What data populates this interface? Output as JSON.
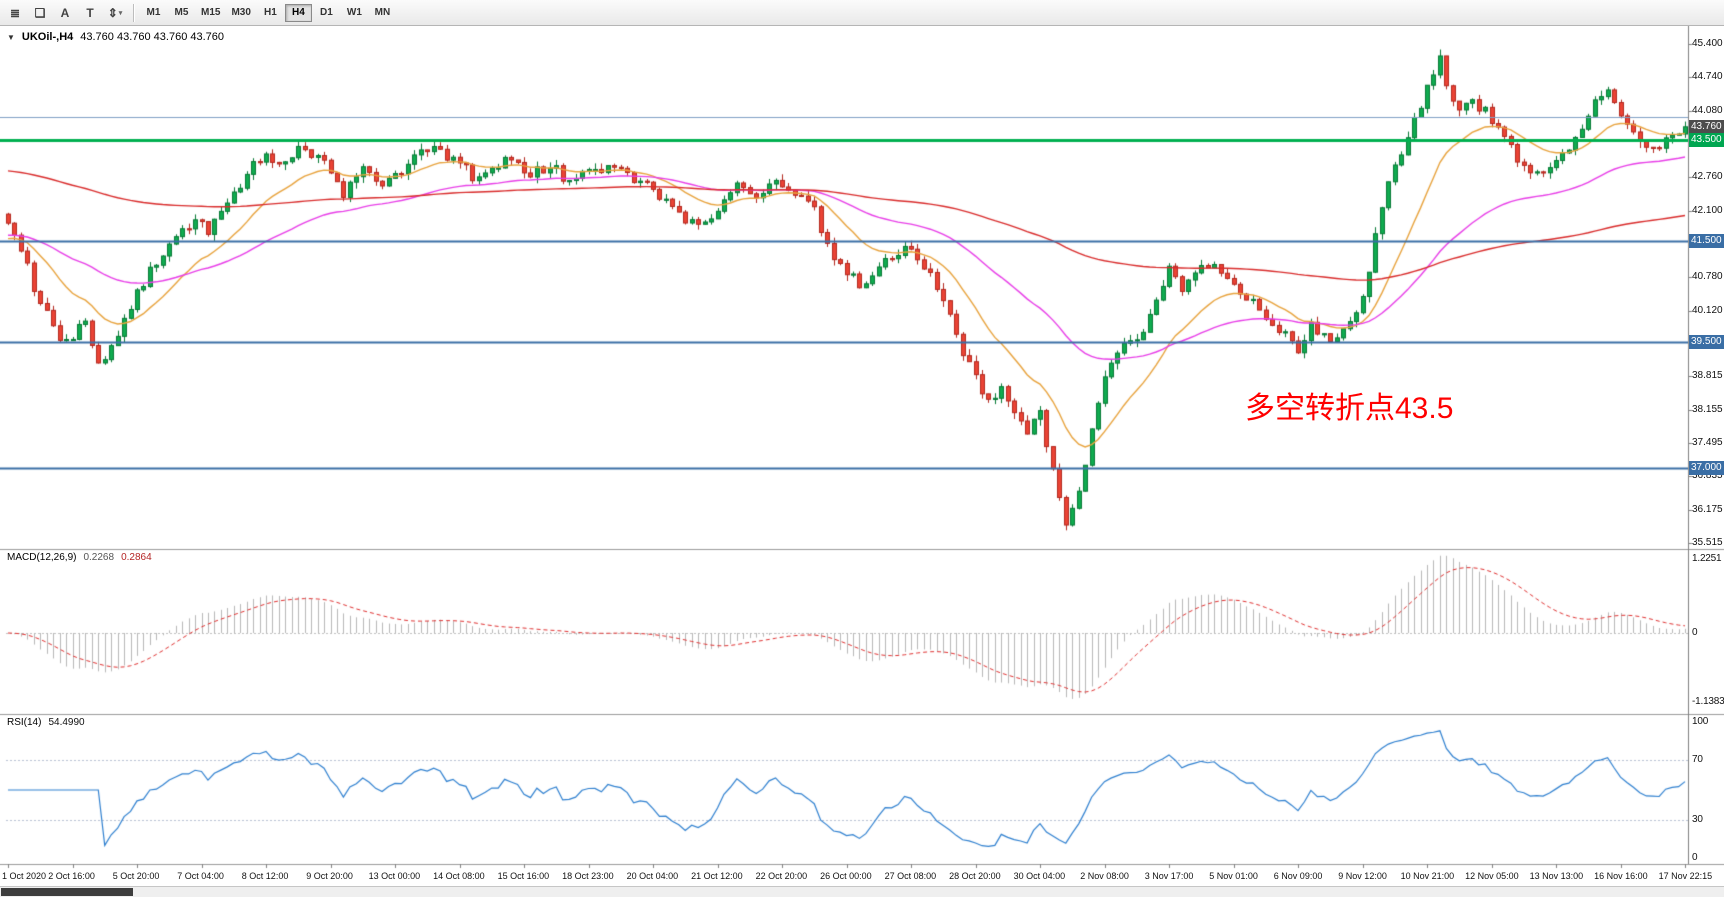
{
  "toolbar": {
    "tools": [
      {
        "glyph": "≣"
      },
      {
        "glyph": "❏"
      },
      {
        "glyph": "A"
      },
      {
        "glyph": "T"
      },
      {
        "glyph": "⇕",
        "caret": "▾"
      }
    ],
    "timeframes": [
      "M1",
      "M5",
      "M15",
      "M30",
      "H1",
      "H4",
      "D1",
      "W1",
      "MN"
    ],
    "active_timeframe": "H4"
  },
  "chart_header": {
    "collapse_glyph": "▼",
    "symbol_timeframe": "UKOil-,H4",
    "ohlc": "43.760 43.760 43.760 43.760"
  },
  "annotation": {
    "text": "多空转折点43.5",
    "color": "#ff0000"
  },
  "chart_data": {
    "type": "candlestick",
    "symbol": "UKOil-",
    "timeframe": "H4",
    "title": "UKOil-,H4",
    "current_price": 43.76,
    "colors": {
      "up": "#10ab4f",
      "up_border": "#067a35",
      "down": "#ea4335",
      "down_border": "#b3271e",
      "background": "#ffffff"
    },
    "price_axis": {
      "range": [
        35.3,
        45.76
      ],
      "ticks": [
        {
          "label": "45.400",
          "price": 45.4
        },
        {
          "label": "44.740",
          "price": 44.74
        },
        {
          "label": "44.080",
          "price": 44.08
        },
        {
          "label": "42.760",
          "price": 42.76
        },
        {
          "label": "42.100",
          "price": 42.1
        },
        {
          "label": "40.780",
          "price": 40.78
        },
        {
          "label": "40.120",
          "price": 40.12
        },
        {
          "label": "38.815",
          "price": 38.815
        },
        {
          "label": "38.155",
          "price": 38.155
        },
        {
          "label": "37.495",
          "price": 37.495
        },
        {
          "label": "36.835",
          "price": 36.835
        },
        {
          "label": "36.175",
          "price": 36.175
        },
        {
          "label": "35.515",
          "price": 35.515
        }
      ]
    },
    "price_tags": [
      {
        "label": "43.760",
        "price": 43.76,
        "bg": "#4d4d4d",
        "kind": "current-price"
      },
      {
        "label": "43.500",
        "price": 43.5,
        "bg": "#00a651",
        "kind": "level"
      },
      {
        "label": "41.500",
        "price": 41.5,
        "bg": "#3a6ea5",
        "kind": "level"
      },
      {
        "label": "39.500",
        "price": 39.5,
        "bg": "#3a6ea5",
        "kind": "level"
      },
      {
        "label": "37.000",
        "price": 37.0,
        "bg": "#3a6ea5",
        "kind": "level"
      }
    ],
    "levels": [
      {
        "price": 43.95,
        "color": "#7f9fc5",
        "width": 1,
        "dash": false
      },
      {
        "price": 43.5,
        "color": "#00b050",
        "width": 3,
        "dash": false
      },
      {
        "price": 41.5,
        "color": "#3a6ea5",
        "width": 2,
        "dash": false
      },
      {
        "price": 39.5,
        "color": "#3a6ea5",
        "width": 2,
        "dash": false
      },
      {
        "price": 37.0,
        "color": "#3a6ea5",
        "width": 2,
        "dash": false
      }
    ],
    "moving_averages": [
      {
        "name": "ma-fast",
        "period": 15,
        "init": 41.5,
        "color": "#e8a33d"
      },
      {
        "name": "ma-mid",
        "period": 48,
        "init": 41.6,
        "color": "#e83ee8"
      },
      {
        "name": "ma-slow",
        "period": 170,
        "init": 42.9,
        "color": "#d92b2b"
      }
    ],
    "candles": {
      "count": 261,
      "seed": 20201117,
      "noise": 0.22,
      "wick": 0.13,
      "anchors": [
        [
          0,
          41.95
        ],
        [
          2,
          41.4
        ],
        [
          4,
          40.6
        ],
        [
          6,
          40.05
        ],
        [
          8,
          39.55
        ],
        [
          10,
          39.65
        ],
        [
          12,
          39.9
        ],
        [
          14,
          39.0
        ],
        [
          16,
          39.35
        ],
        [
          18,
          39.9
        ],
        [
          20,
          40.5
        ],
        [
          23,
          41.1
        ],
        [
          26,
          41.5
        ],
        [
          29,
          42.0
        ],
        [
          31,
          41.7
        ],
        [
          34,
          42.3
        ],
        [
          37,
          42.8
        ],
        [
          40,
          43.3
        ],
        [
          42,
          42.95
        ],
        [
          45,
          43.35
        ],
        [
          48,
          43.1
        ],
        [
          50,
          42.9
        ],
        [
          52,
          42.45
        ],
        [
          55,
          42.9
        ],
        [
          58,
          42.65
        ],
        [
          61,
          42.9
        ],
        [
          64,
          43.3
        ],
        [
          67,
          43.25
        ],
        [
          70,
          43.1
        ],
        [
          72,
          42.7
        ],
        [
          75,
          42.95
        ],
        [
          78,
          43.2
        ],
        [
          81,
          42.8
        ],
        [
          84,
          43.0
        ],
        [
          87,
          42.65
        ],
        [
          90,
          42.85
        ],
        [
          93,
          43.0
        ],
        [
          96,
          42.75
        ],
        [
          99,
          42.6
        ],
        [
          102,
          42.3
        ],
        [
          105,
          41.95
        ],
        [
          107,
          41.75
        ],
        [
          110,
          42.15
        ],
        [
          113,
          42.6
        ],
        [
          116,
          42.35
        ],
        [
          119,
          42.6
        ],
        [
          122,
          42.4
        ],
        [
          125,
          42.1
        ],
        [
          127,
          41.4
        ],
        [
          130,
          40.85
        ],
        [
          133,
          40.55
        ],
        [
          136,
          41.05
        ],
        [
          139,
          41.35
        ],
        [
          142,
          41.0
        ],
        [
          145,
          40.3
        ],
        [
          148,
          39.3
        ],
        [
          150,
          38.75
        ],
        [
          152,
          38.3
        ],
        [
          154,
          38.55
        ],
        [
          156,
          38.0
        ],
        [
          158,
          37.75
        ],
        [
          160,
          38.15
        ],
        [
          162,
          36.9
        ],
        [
          164,
          35.95
        ],
        [
          166,
          36.5
        ],
        [
          168,
          37.8
        ],
        [
          170,
          38.8
        ],
        [
          172,
          39.3
        ],
        [
          175,
          39.5
        ],
        [
          178,
          40.3
        ],
        [
          180,
          40.9
        ],
        [
          182,
          40.6
        ],
        [
          185,
          41.1
        ],
        [
          188,
          40.85
        ],
        [
          191,
          40.55
        ],
        [
          194,
          40.1
        ],
        [
          197,
          39.75
        ],
        [
          200,
          39.35
        ],
        [
          202,
          39.8
        ],
        [
          205,
          39.55
        ],
        [
          208,
          39.9
        ],
        [
          210,
          40.3
        ],
        [
          212,
          41.6
        ],
        [
          214,
          42.6
        ],
        [
          216,
          43.3
        ],
        [
          218,
          43.9
        ],
        [
          220,
          44.5
        ],
        [
          222,
          45.1
        ],
        [
          223,
          44.6
        ],
        [
          225,
          44.0
        ],
        [
          227,
          44.25
        ],
        [
          229,
          44.1
        ],
        [
          231,
          43.7
        ],
        [
          234,
          43.1
        ],
        [
          237,
          42.85
        ],
        [
          240,
          43.1
        ],
        [
          242,
          43.35
        ],
        [
          244,
          43.8
        ],
        [
          246,
          44.25
        ],
        [
          248,
          44.5
        ],
        [
          250,
          44.0
        ],
        [
          252,
          43.75
        ],
        [
          254,
          43.4
        ],
        [
          256,
          43.35
        ],
        [
          258,
          43.65
        ],
        [
          260,
          43.76
        ]
      ]
    },
    "macd": {
      "label": "MACD(12,26,9)",
      "value_main": "0.2268",
      "value_signal": "0.2864",
      "fast": 12,
      "slow": 26,
      "signal": 9,
      "axis": [
        "1.2251",
        "0",
        "-1.1383"
      ],
      "hist_color": "#b8b8b8",
      "signal_color": "#e03030"
    },
    "rsi": {
      "label": "RSI(14)",
      "value": "54.4990",
      "period": 14,
      "axis": [
        "100",
        "70",
        "30",
        "0"
      ],
      "levels": [
        70,
        30
      ],
      "color": "#2f80d0"
    },
    "x_axis": {
      "bars_per_label": 10,
      "labels": [
        "1 Oct 2020",
        "2 Oct 16:00",
        "5 Oct 20:00",
        "7 Oct 04:00",
        "8 Oct 12:00",
        "9 Oct 20:00",
        "13 Oct 00:00",
        "14 Oct 08:00",
        "15 Oct 16:00",
        "18 Oct 23:00",
        "20 Oct 04:00",
        "21 Oct 12:00",
        "22 Oct 20:00",
        "26 Oct 00:00",
        "27 Oct 08:00",
        "28 Oct 20:00",
        "30 Oct 04:00",
        "2 Nov 08:00",
        "3 Nov 17:00",
        "5 Nov 01:00",
        "6 Nov 09:00",
        "9 Nov 12:00",
        "10 Nov 21:00",
        "12 Nov 05:00",
        "13 Nov 13:00",
        "16 Nov 16:00",
        "17 Nov 22:15"
      ]
    }
  }
}
